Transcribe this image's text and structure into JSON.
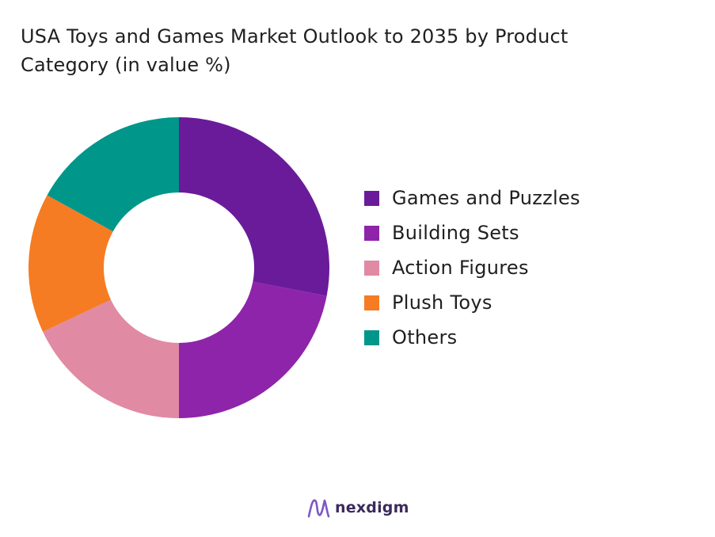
{
  "chart_data": {
    "type": "pie",
    "title_lines": [
      "USA Toys and Games Market Outlook to 2035 by Product",
      "Category (in value %)"
    ],
    "hole": true,
    "legend_position": "right",
    "series": [
      {
        "name": "Games and Puzzles",
        "value": 28,
        "color": "#6a1b9a"
      },
      {
        "name": "Building Sets",
        "value": 22,
        "color": "#8e24aa"
      },
      {
        "name": "Action Figures",
        "value": 18,
        "color": "#e08aa3"
      },
      {
        "name": "Plush Toys",
        "value": 15,
        "color": "#f57c22"
      },
      {
        "name": "Others",
        "value": 17,
        "color": "#00968a"
      }
    ]
  },
  "brand": {
    "name": "nexdigm",
    "logo_icon": "nexdigm-logo-icon",
    "logo_color": "#7e57c2"
  }
}
